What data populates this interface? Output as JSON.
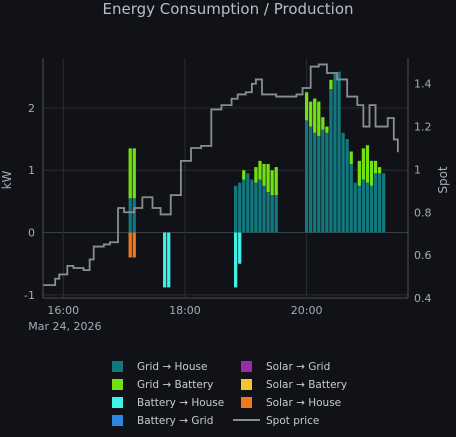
{
  "chart_data": {
    "type": "bar",
    "title": "Energy Consumption / Production",
    "ylabel": "kW",
    "y2label": "Spot",
    "ylim": [
      -1.05,
      2.8
    ],
    "y2lim": [
      0.4,
      1.52
    ],
    "yticks": [
      -1,
      0,
      1,
      2
    ],
    "y2ticks": [
      "0.4",
      "0.6",
      "0.8",
      "1",
      "1.2",
      "1.4"
    ],
    "y2tick_values": [
      0.4,
      0.6,
      0.8,
      1.0,
      1.2,
      1.4
    ],
    "xlim": [
      "15:40",
      "21:40"
    ],
    "xticks": [
      {
        "t": "16:00",
        "label": "16:00",
        "sublabel": "Mar 24, 2026"
      },
      {
        "t": "18:00",
        "label": "18:00",
        "sublabel": ""
      },
      {
        "t": "20:00",
        "label": "20:00",
        "sublabel": ""
      }
    ],
    "bar_width_minutes": 4,
    "colors": {
      "grid_house": "#13787d",
      "grid_battery": "#73e012",
      "battery_house": "#41f0e6",
      "battery_grid": "#2e86e0",
      "solar_grid": "#9b2ca8",
      "solar_battery": "#f2c531",
      "solar_house": "#f07a1b",
      "spot": "#8a8d92",
      "background": "#111217",
      "grid": "#2a2d33"
    },
    "legend": [
      {
        "key": "grid_house",
        "label": "Grid → House",
        "kind": "box"
      },
      {
        "key": "solar_grid",
        "label": "Solar → Grid",
        "kind": "box"
      },
      {
        "key": "grid_battery",
        "label": "Grid → Battery",
        "kind": "box"
      },
      {
        "key": "solar_battery",
        "label": "Solar → Battery",
        "kind": "box"
      },
      {
        "key": "battery_house",
        "label": "Battery → House",
        "kind": "box"
      },
      {
        "key": "solar_house",
        "label": "Solar → House",
        "kind": "box"
      },
      {
        "key": "battery_grid",
        "label": "Battery → Grid",
        "kind": "box"
      },
      {
        "key": "spot",
        "label": "Spot price",
        "kind": "line"
      }
    ],
    "legend_placement": "bottom",
    "series": [
      {
        "key": "grid_house",
        "axis": "left",
        "points": [
          {
            "t": "17:06",
            "v": 0.55
          },
          {
            "t": "17:10",
            "v": 0.55
          },
          {
            "t": "18:50",
            "v": 0.75
          },
          {
            "t": "18:54",
            "v": 0.8
          },
          {
            "t": "18:58",
            "v": 0.85
          },
          {
            "t": "19:02",
            "v": 0.95
          },
          {
            "t": "19:06",
            "v": 0.85
          },
          {
            "t": "19:10",
            "v": 0.8
          },
          {
            "t": "19:14",
            "v": 0.85
          },
          {
            "t": "19:18",
            "v": 0.75
          },
          {
            "t": "19:22",
            "v": 0.65
          },
          {
            "t": "19:26",
            "v": 0.6
          },
          {
            "t": "19:30",
            "v": 0.6
          },
          {
            "t": "20:00",
            "v": 1.8
          },
          {
            "t": "20:04",
            "v": 1.7
          },
          {
            "t": "20:08",
            "v": 1.6
          },
          {
            "t": "20:12",
            "v": 1.55
          },
          {
            "t": "20:16",
            "v": 1.65
          },
          {
            "t": "20:20",
            "v": 1.6
          },
          {
            "t": "20:24",
            "v": 2.3
          },
          {
            "t": "20:28",
            "v": 2.55
          },
          {
            "t": "20:32",
            "v": 2.58
          },
          {
            "t": "20:36",
            "v": 1.6
          },
          {
            "t": "20:40",
            "v": 1.5
          },
          {
            "t": "20:44",
            "v": 1.1
          },
          {
            "t": "20:48",
            "v": 0.8
          },
          {
            "t": "20:52",
            "v": 0.75
          },
          {
            "t": "20:56",
            "v": 0.85
          },
          {
            "t": "21:00",
            "v": 0.8
          },
          {
            "t": "21:04",
            "v": 0.75
          },
          {
            "t": "21:08",
            "v": 0.95
          },
          {
            "t": "21:12",
            "v": 0.95
          },
          {
            "t": "21:16",
            "v": 0.95
          }
        ]
      },
      {
        "key": "grid_battery",
        "axis": "left",
        "points": [
          {
            "t": "17:06",
            "v": 0.8
          },
          {
            "t": "17:10",
            "v": 0.8
          },
          {
            "t": "18:58",
            "v": 0.15
          },
          {
            "t": "19:10",
            "v": 0.25
          },
          {
            "t": "19:14",
            "v": 0.3
          },
          {
            "t": "19:18",
            "v": 0.35
          },
          {
            "t": "19:22",
            "v": 0.45
          },
          {
            "t": "19:26",
            "v": 0.4
          },
          {
            "t": "19:30",
            "v": 0.45
          },
          {
            "t": "20:00",
            "v": 0.45
          },
          {
            "t": "20:04",
            "v": 0.4
          },
          {
            "t": "20:08",
            "v": 0.55
          },
          {
            "t": "20:12",
            "v": 0.55
          },
          {
            "t": "20:16",
            "v": 0.2
          },
          {
            "t": "20:20",
            "v": 0.1
          },
          {
            "t": "20:24",
            "v": 0.15
          },
          {
            "t": "20:44",
            "v": 0.2
          },
          {
            "t": "20:52",
            "v": 0.4
          },
          {
            "t": "20:56",
            "v": 0.5
          },
          {
            "t": "21:00",
            "v": 0.6
          },
          {
            "t": "21:04",
            "v": 0.4
          },
          {
            "t": "21:08",
            "v": 0.2
          },
          {
            "t": "21:12",
            "v": 0.1
          }
        ]
      },
      {
        "key": "solar_house",
        "axis": "left",
        "points": [
          {
            "t": "17:06",
            "v": -0.4
          },
          {
            "t": "17:10",
            "v": -0.4
          }
        ]
      },
      {
        "key": "battery_house",
        "axis": "left",
        "points": [
          {
            "t": "17:40",
            "v": -0.88
          },
          {
            "t": "17:44",
            "v": -0.88
          },
          {
            "t": "18:50",
            "v": -0.88
          },
          {
            "t": "18:54",
            "v": -0.5
          }
        ]
      },
      {
        "key": "spot",
        "axis": "right",
        "kind": "step",
        "points": [
          {
            "t": "15:40",
            "v": 0.46
          },
          {
            "t": "15:48",
            "v": 0.46
          },
          {
            "t": "15:52",
            "v": 0.49
          },
          {
            "t": "15:56",
            "v": 0.51
          },
          {
            "t": "16:00",
            "v": 0.51
          },
          {
            "t": "16:04",
            "v": 0.55
          },
          {
            "t": "16:10",
            "v": 0.54
          },
          {
            "t": "16:20",
            "v": 0.53
          },
          {
            "t": "16:26",
            "v": 0.58
          },
          {
            "t": "16:30",
            "v": 0.64
          },
          {
            "t": "16:40",
            "v": 0.65
          },
          {
            "t": "16:46",
            "v": 0.66
          },
          {
            "t": "16:50",
            "v": 0.66
          },
          {
            "t": "16:54",
            "v": 0.82
          },
          {
            "t": "17:00",
            "v": 0.8
          },
          {
            "t": "17:10",
            "v": 0.82
          },
          {
            "t": "17:18",
            "v": 0.87
          },
          {
            "t": "17:28",
            "v": 0.82
          },
          {
            "t": "17:36",
            "v": 0.79
          },
          {
            "t": "17:46",
            "v": 0.88
          },
          {
            "t": "17:56",
            "v": 1.04
          },
          {
            "t": "18:06",
            "v": 1.1
          },
          {
            "t": "18:16",
            "v": 1.11
          },
          {
            "t": "18:26",
            "v": 1.28
          },
          {
            "t": "18:36",
            "v": 1.3
          },
          {
            "t": "18:46",
            "v": 1.33
          },
          {
            "t": "18:52",
            "v": 1.35
          },
          {
            "t": "19:00",
            "v": 1.36
          },
          {
            "t": "19:06",
            "v": 1.4
          },
          {
            "t": "19:10",
            "v": 1.42
          },
          {
            "t": "19:16",
            "v": 1.35
          },
          {
            "t": "19:30",
            "v": 1.34
          },
          {
            "t": "19:40",
            "v": 1.34
          },
          {
            "t": "19:50",
            "v": 1.35
          },
          {
            "t": "19:56",
            "v": 1.38
          },
          {
            "t": "20:04",
            "v": 1.48
          },
          {
            "t": "20:12",
            "v": 1.49
          },
          {
            "t": "20:20",
            "v": 1.45
          },
          {
            "t": "20:30",
            "v": 1.42
          },
          {
            "t": "20:40",
            "v": 1.34
          },
          {
            "t": "20:50",
            "v": 1.3
          },
          {
            "t": "20:56",
            "v": 1.2
          },
          {
            "t": "21:02",
            "v": 1.3
          },
          {
            "t": "21:08",
            "v": 1.2
          },
          {
            "t": "21:20",
            "v": 1.24
          },
          {
            "t": "21:26",
            "v": 1.14
          },
          {
            "t": "21:30",
            "v": 1.08
          }
        ]
      }
    ]
  }
}
